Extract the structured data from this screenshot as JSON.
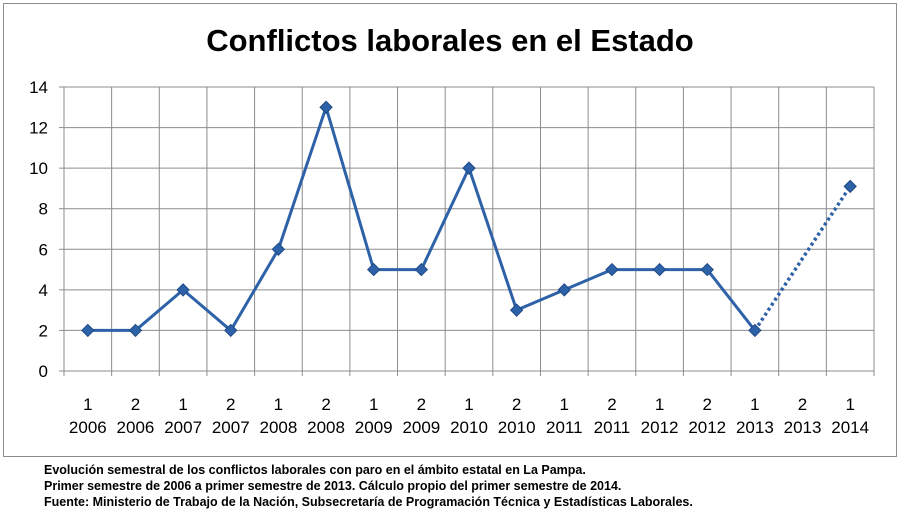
{
  "chart_data": {
    "type": "line",
    "title": "Conflictos laborales en el Estado",
    "xlabel": "",
    "ylabel": "",
    "ylim": [
      0,
      14
    ],
    "yticks": [
      0,
      2,
      4,
      6,
      8,
      10,
      12,
      14
    ],
    "grid": true,
    "legend": "none",
    "categories": [
      {
        "semester": "1",
        "year": "2006"
      },
      {
        "semester": "2",
        "year": "2006"
      },
      {
        "semester": "1",
        "year": "2007"
      },
      {
        "semester": "2",
        "year": "2007"
      },
      {
        "semester": "1",
        "year": "2008"
      },
      {
        "semester": "2",
        "year": "2008"
      },
      {
        "semester": "1",
        "year": "2009"
      },
      {
        "semester": "2",
        "year": "2009"
      },
      {
        "semester": "1",
        "year": "2010"
      },
      {
        "semester": "2",
        "year": "2010"
      },
      {
        "semester": "1",
        "year": "2011"
      },
      {
        "semester": "2",
        "year": "2011"
      },
      {
        "semester": "1",
        "year": "2012"
      },
      {
        "semester": "2",
        "year": "2012"
      },
      {
        "semester": "1",
        "year": "2013"
      },
      {
        "semester": "2",
        "year": "2013"
      },
      {
        "semester": "1",
        "year": "2014"
      }
    ],
    "series": [
      {
        "values": [
          2,
          2,
          4,
          2,
          6,
          13,
          5,
          5,
          10,
          3,
          4,
          5,
          5,
          5,
          2,
          null,
          9.1
        ],
        "dashed_from_index": 14,
        "color": "#2e62a8"
      }
    ]
  },
  "caption": {
    "line1": "Evolución semestral de los conflictos laborales con paro en el ámbito estatal en La Pampa.",
    "line2": "Primer semestre de 2006 a primer semestre de 2013. Cálculo propio del primer semestre de 2014.",
    "line3": "Fuente:  Ministerio de Trabajo de la Nación, Subsecretaría de Programación Técnica y Estadísticas Laborales."
  }
}
